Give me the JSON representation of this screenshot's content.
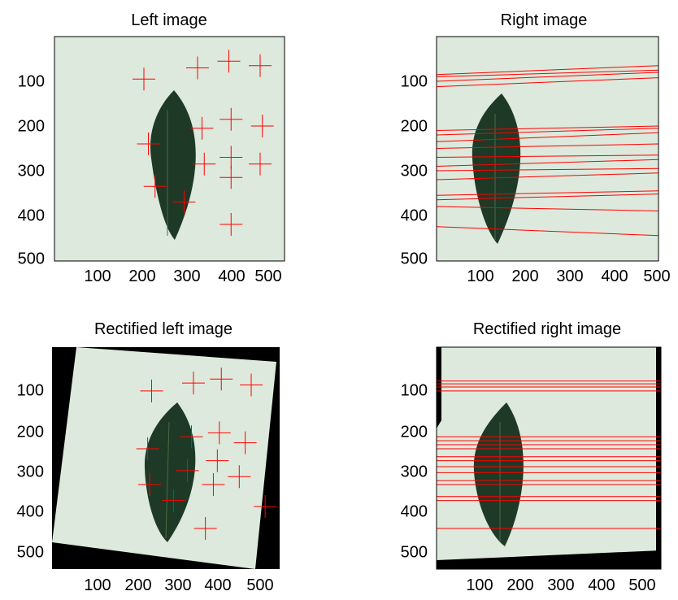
{
  "panels": [
    {
      "title": "Left image",
      "yticks": [
        "100",
        "200",
        "300",
        "400",
        "500"
      ],
      "xticks": [
        "100",
        "200",
        "300",
        "400",
        "500"
      ],
      "image": "left",
      "points": [
        [
          200,
          95
        ],
        [
          320,
          70
        ],
        [
          390,
          55
        ],
        [
          460,
          65
        ],
        [
          210,
          240
        ],
        [
          330,
          205
        ],
        [
          395,
          185
        ],
        [
          465,
          200
        ],
        [
          225,
          335
        ],
        [
          335,
          285
        ],
        [
          395,
          270
        ],
        [
          460,
          285
        ],
        [
          395,
          315
        ],
        [
          290,
          370
        ],
        [
          395,
          420
        ]
      ]
    },
    {
      "title": "Right image",
      "yticks": [
        "100",
        "200",
        "300",
        "400",
        "500"
      ],
      "xticks": [
        "100",
        "200",
        "300",
        "400",
        "500"
      ],
      "image": "right",
      "lines": [
        [
          85,
          65
        ],
        [
          90,
          75
        ],
        [
          100,
          80
        ],
        [
          112,
          92
        ],
        [
          210,
          200
        ],
        [
          220,
          205
        ],
        [
          235,
          215
        ],
        [
          250,
          240
        ],
        [
          270,
          265
        ],
        [
          290,
          275
        ],
        [
          300,
          295
        ],
        [
          320,
          305
        ],
        [
          355,
          345
        ],
        [
          365,
          352
        ],
        [
          380,
          390
        ],
        [
          425,
          445
        ]
      ]
    },
    {
      "title": "Rectified left image",
      "yticks": [
        "100",
        "200",
        "300",
        "400",
        "500"
      ],
      "xticks": [
        "100",
        "200",
        "300",
        "400",
        "500"
      ],
      "image": "rectified-left",
      "points": [
        [
          250,
          110
        ],
        [
          355,
          90
        ],
        [
          425,
          80
        ],
        [
          500,
          95
        ],
        [
          240,
          255
        ],
        [
          350,
          225
        ],
        [
          420,
          215
        ],
        [
          485,
          240
        ],
        [
          245,
          345
        ],
        [
          340,
          310
        ],
        [
          415,
          285
        ],
        [
          470,
          325
        ],
        [
          405,
          345
        ],
        [
          305,
          385
        ],
        [
          385,
          455
        ],
        [
          535,
          400
        ]
      ]
    },
    {
      "title": "Rectified right image",
      "yticks": [
        "100",
        "200",
        "300",
        "400",
        "500"
      ],
      "xticks": [
        "100",
        "200",
        "300",
        "400",
        "500"
      ],
      "image": "rectified-right",
      "lines": [
        85,
        92,
        100,
        110,
        225,
        235,
        245,
        255,
        275,
        285,
        300,
        315,
        335,
        345,
        375,
        385,
        455
      ]
    }
  ]
}
